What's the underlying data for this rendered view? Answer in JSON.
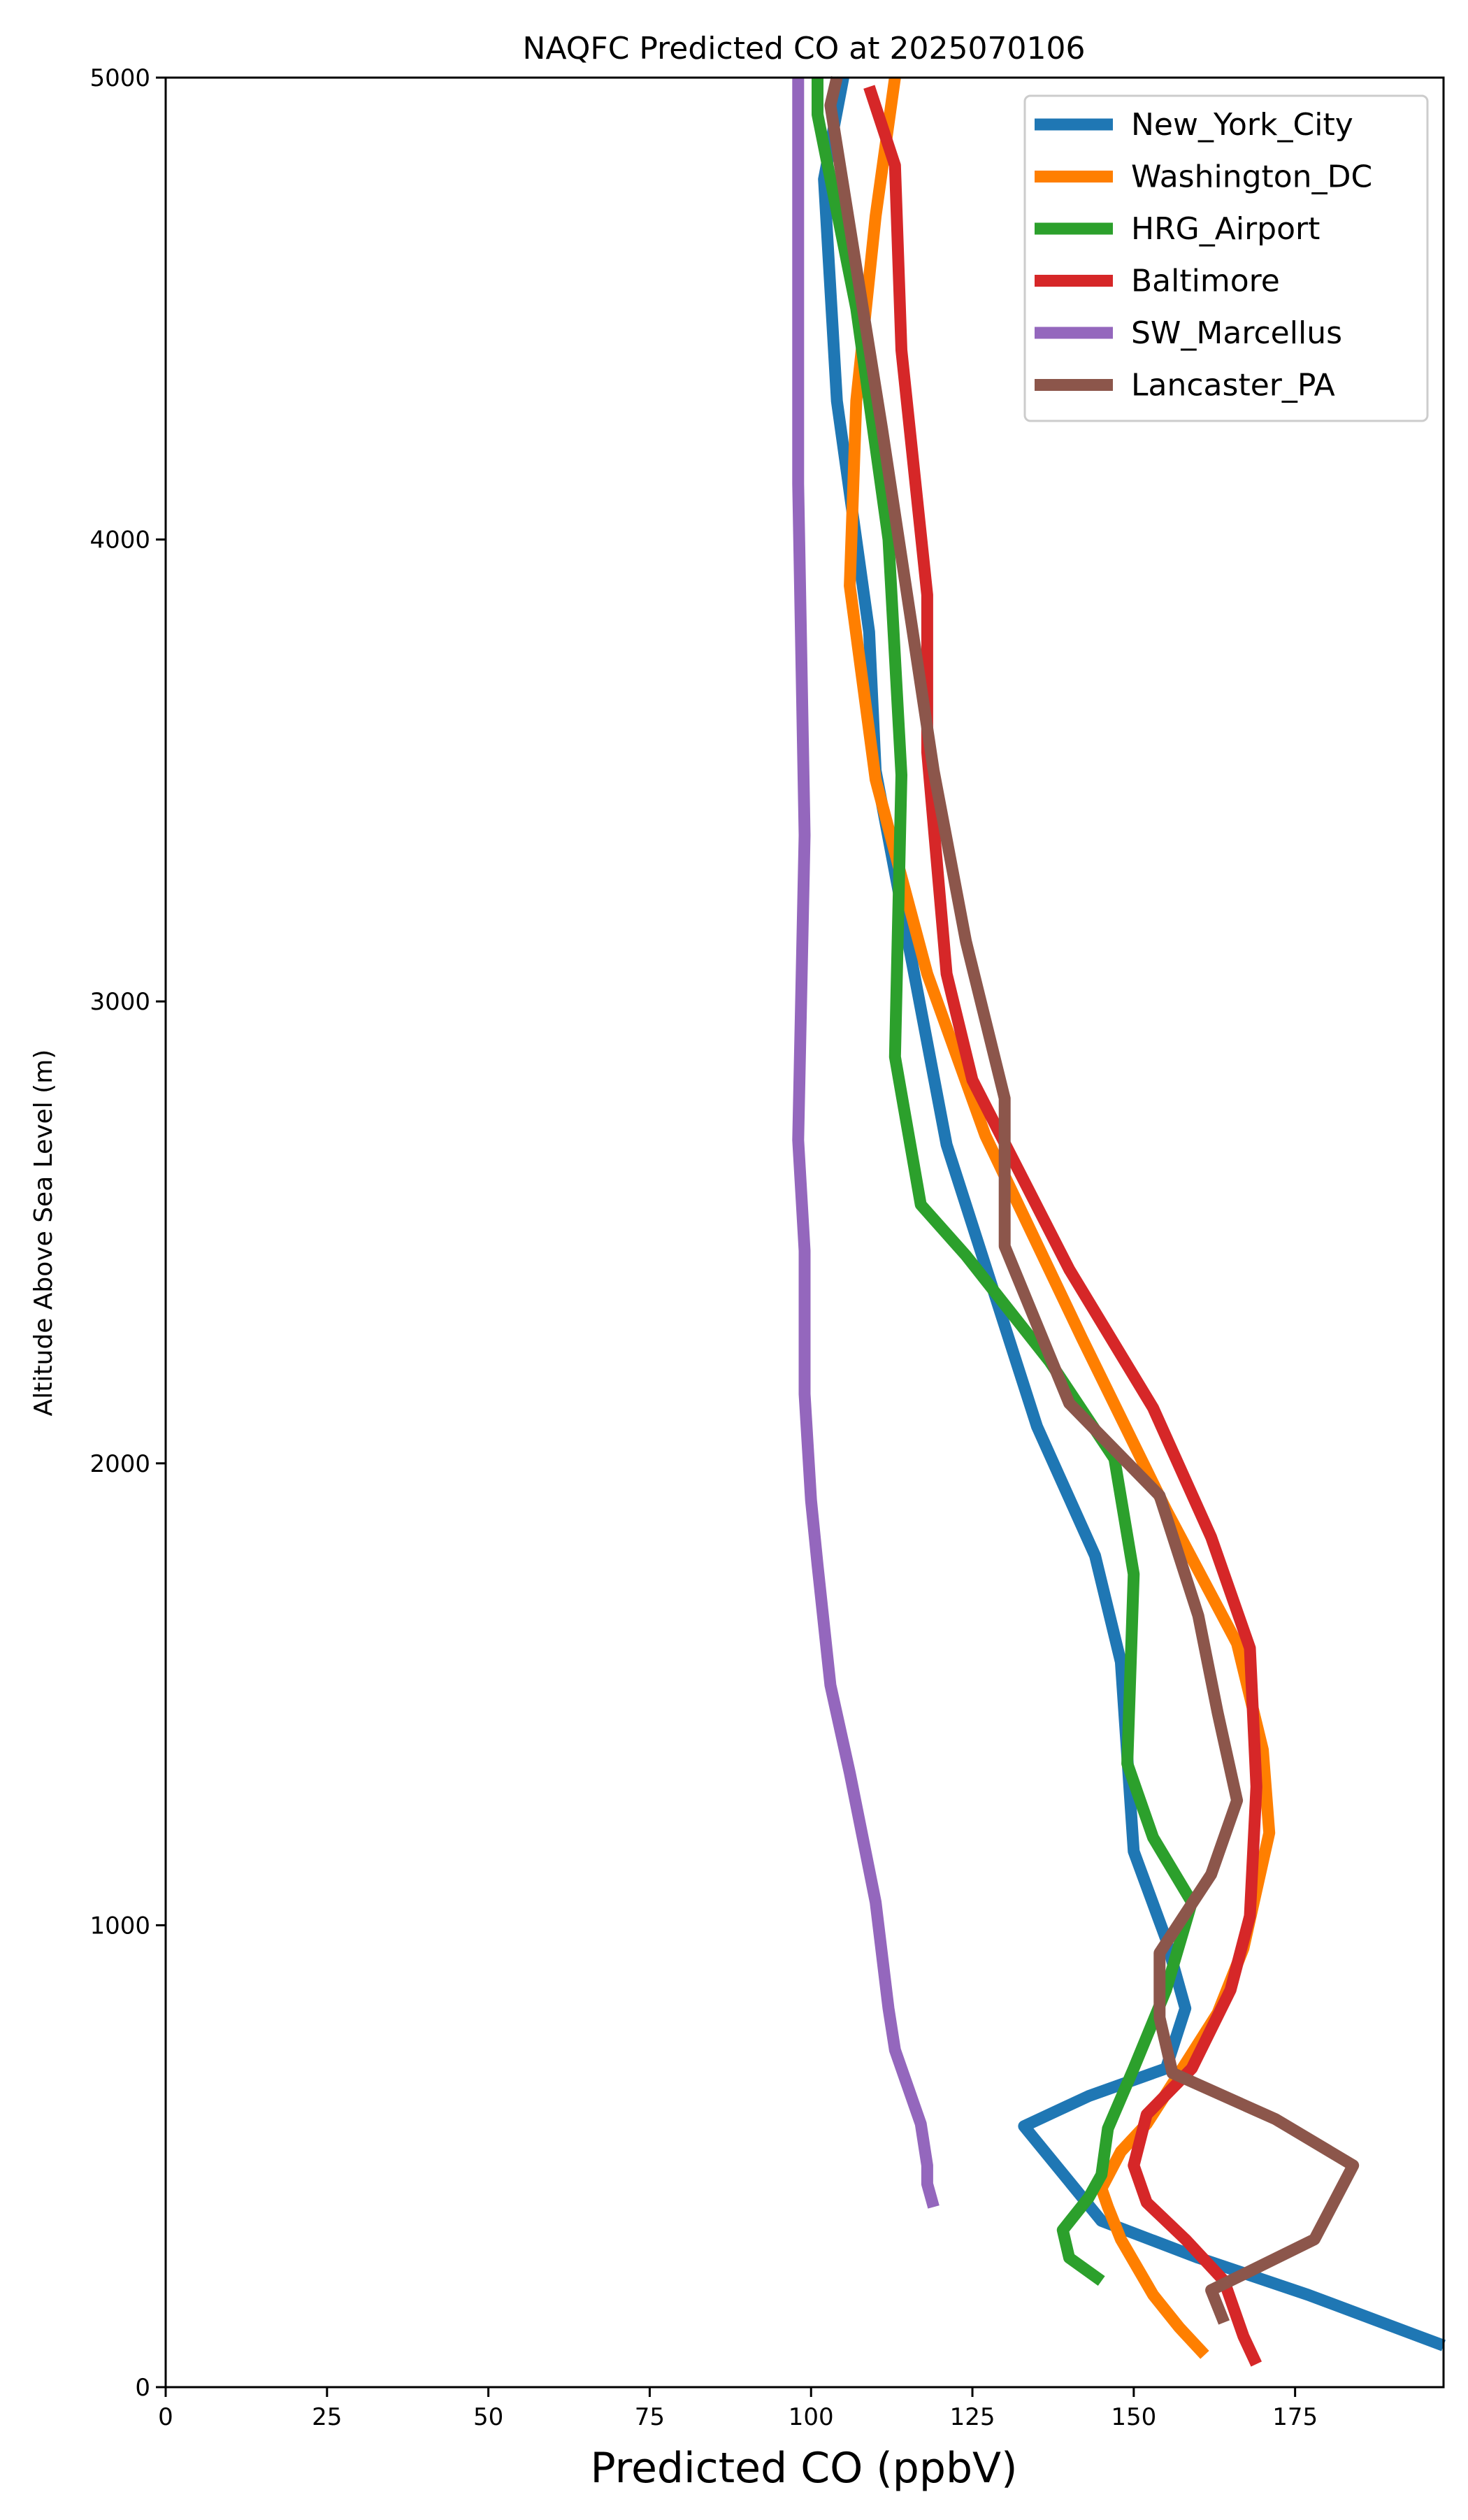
{
  "chart_data": {
    "type": "line",
    "title": "NAQFC Predicted CO at 2025070106",
    "xlabel": "Predicted CO (ppbV)",
    "ylabel": "Altitude Above Sea Level (m)",
    "xlim": [
      0,
      198
    ],
    "ylim": [
      0,
      5000
    ],
    "xticks": [
      0,
      25,
      50,
      75,
      100,
      125,
      150,
      175
    ],
    "yticks": [
      0,
      1000,
      2000,
      3000,
      4000,
      5000
    ],
    "grid": false,
    "legend_position": "top-right",
    "series": [
      {
        "name": "New_York_City",
        "color": "#1f77b4",
        "points": [
          [
            198,
            90
          ],
          [
            177,
            200
          ],
          [
            160,
            280
          ],
          [
            145,
            360
          ],
          [
            133,
            565
          ],
          [
            143,
            630
          ],
          [
            155,
            690
          ],
          [
            158,
            820
          ],
          [
            155,
            970
          ],
          [
            150,
            1160
          ],
          [
            148,
            1570
          ],
          [
            144,
            1800
          ],
          [
            135,
            2080
          ],
          [
            121,
            2690
          ],
          [
            110,
            3500
          ],
          [
            109,
            3800
          ],
          [
            104,
            4300
          ],
          [
            102,
            4780
          ],
          [
            105,
            5000
          ]
        ]
      },
      {
        "name": "Washington_DC",
        "color": "#ff7f00",
        "points": [
          [
            161,
            70
          ],
          [
            157,
            130
          ],
          [
            153,
            200
          ],
          [
            148,
            320
          ],
          [
            146,
            390
          ],
          [
            145,
            430
          ],
          [
            148,
            510
          ],
          [
            152,
            570
          ],
          [
            158,
            700
          ],
          [
            163,
            810
          ],
          [
            167,
            950
          ],
          [
            171,
            1200
          ],
          [
            170,
            1380
          ],
          [
            166,
            1610
          ],
          [
            155,
            1900
          ],
          [
            142,
            2270
          ],
          [
            127,
            2710
          ],
          [
            118,
            3060
          ],
          [
            110,
            3480
          ],
          [
            106,
            3900
          ],
          [
            107,
            4300
          ],
          [
            110,
            4700
          ],
          [
            113,
            5000
          ]
        ]
      },
      {
        "name": "HRG_Airport",
        "color": "#2ca02c",
        "points": [
          [
            145,
            230
          ],
          [
            140,
            280
          ],
          [
            139,
            340
          ],
          [
            143,
            410
          ],
          [
            145,
            460
          ],
          [
            146,
            560
          ],
          [
            150,
            690
          ],
          [
            155,
            860
          ],
          [
            159,
            1050
          ],
          [
            153,
            1190
          ],
          [
            149,
            1350
          ],
          [
            150,
            1760
          ],
          [
            147,
            2010
          ],
          [
            137,
            2220
          ],
          [
            124,
            2450
          ],
          [
            117,
            2560
          ],
          [
            113,
            2880
          ],
          [
            114,
            3490
          ],
          [
            112,
            4000
          ],
          [
            107,
            4500
          ],
          [
            101,
            4920
          ],
          [
            101,
            5000
          ]
        ]
      },
      {
        "name": "Baltimore",
        "color": "#d62728",
        "points": [
          [
            169,
            50
          ],
          [
            167,
            110
          ],
          [
            164,
            230
          ],
          [
            158,
            320
          ],
          [
            152,
            400
          ],
          [
            150,
            480
          ],
          [
            152,
            590
          ],
          [
            159,
            690
          ],
          [
            165,
            860
          ],
          [
            168,
            1020
          ],
          [
            169,
            1300
          ],
          [
            168,
            1600
          ],
          [
            162,
            1840
          ],
          [
            153,
            2120
          ],
          [
            140,
            2420
          ],
          [
            125,
            2830
          ],
          [
            121,
            3060
          ],
          [
            118,
            3540
          ],
          [
            118,
            3880
          ],
          [
            114,
            4410
          ],
          [
            113,
            4810
          ],
          [
            109,
            4980
          ]
        ]
      },
      {
        "name": "SW_Marcellus",
        "color": "#9467bd",
        "points": [
          [
            119,
            390
          ],
          [
            118,
            440
          ],
          [
            118,
            480
          ],
          [
            117,
            570
          ],
          [
            113,
            730
          ],
          [
            112,
            820
          ],
          [
            110,
            1050
          ],
          [
            106,
            1330
          ],
          [
            103,
            1520
          ],
          [
            101,
            1780
          ],
          [
            100,
            1920
          ],
          [
            99,
            2150
          ],
          [
            99,
            2460
          ],
          [
            98,
            2700
          ],
          [
            99,
            3360
          ],
          [
            98,
            4120
          ],
          [
            98,
            4600
          ],
          [
            98,
            5000
          ]
        ]
      },
      {
        "name": "Lancaster_PA",
        "color": "#8c564b",
        "points": [
          [
            164,
            140
          ],
          [
            162,
            210
          ],
          [
            178,
            320
          ],
          [
            184,
            480
          ],
          [
            172,
            580
          ],
          [
            156,
            680
          ],
          [
            154,
            800
          ],
          [
            154,
            940
          ],
          [
            162,
            1110
          ],
          [
            166,
            1270
          ],
          [
            163,
            1460
          ],
          [
            160,
            1670
          ],
          [
            154,
            1930
          ],
          [
            140,
            2130
          ],
          [
            130,
            2470
          ],
          [
            130,
            2790
          ],
          [
            124,
            3130
          ],
          [
            119,
            3500
          ],
          [
            111,
            4240
          ],
          [
            103,
            4940
          ],
          [
            104,
            5000
          ]
        ]
      }
    ]
  }
}
